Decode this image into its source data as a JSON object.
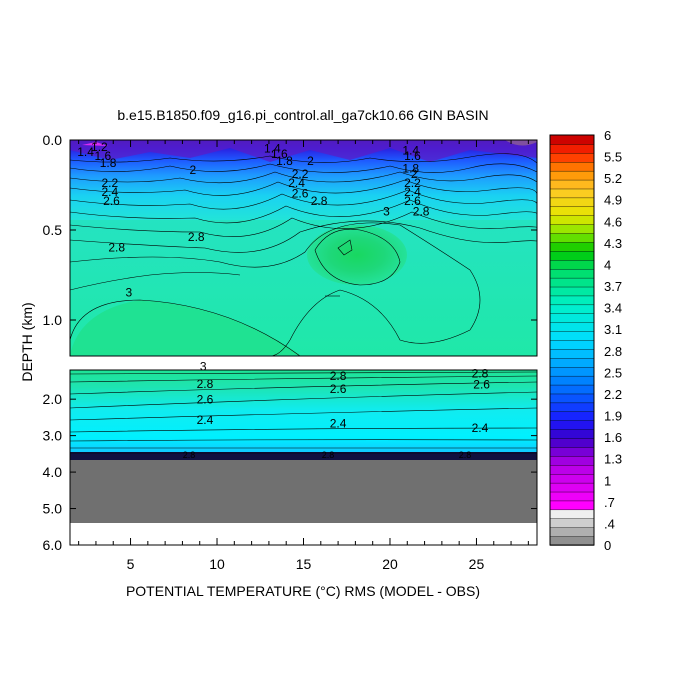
{
  "chart_data": {
    "type": "heatmap",
    "title": "b.e15.B1850.f09_g16.pi_control.all_ga7ck10.66 GIN BASIN",
    "xlabel": "POTENTIAL TEMPERATURE (°C) RMS (MODEL - OBS)",
    "ylabel": "DEPTH (km)",
    "x_range": [
      1.5,
      28.5
    ],
    "x_ticks": [
      "5",
      "10",
      "15",
      "20",
      "25"
    ],
    "upper_panel": {
      "y_range": [
        0.0,
        1.2
      ],
      "y_ticks": [
        "0.0",
        "0.5",
        "1.0"
      ]
    },
    "lower_panel": {
      "y_range": [
        1.2,
        6.0
      ],
      "y_ticks": [
        "2.0",
        "3.0",
        "4.0",
        "5.0",
        "6.0"
      ],
      "bottom_depth_km": 3.6,
      "grey_region_depth_km": [
        3.6,
        5.35
      ]
    },
    "colorbar": {
      "range": [
        0,
        6
      ],
      "levels": [
        0,
        0.1,
        0.2,
        0.3,
        0.4,
        0.5,
        0.6,
        0.7,
        0.8,
        0.9,
        1.0,
        1.1,
        1.2,
        1.3,
        1.4,
        1.5,
        1.6,
        1.7,
        1.8,
        1.9,
        2.0,
        2.1,
        2.2,
        2.3,
        2.4,
        2.5,
        2.6,
        2.7,
        2.8,
        2.9,
        3.0,
        3.1,
        3.2,
        3.3,
        3.4,
        3.5,
        3.6,
        3.7,
        3.8,
        3.9,
        4.0,
        4.3,
        4.6,
        4.9,
        5.2,
        5.5,
        6.0
      ],
      "labels": [
        "6",
        "5.5",
        "5.2",
        "4.9",
        "4.6",
        "4.3",
        "4",
        "3.7",
        "3.4",
        "3.1",
        "2.8",
        "2.5",
        "2.2",
        "1.9",
        "1.6",
        "1.3",
        "1",
        ".7",
        ".4",
        "0"
      ]
    },
    "contour_labels_upper": [
      {
        "text": "1.2",
        "x": 3.2,
        "y": 0.06
      },
      {
        "text": "1.4",
        "x": 2.4,
        "y": 0.09
      },
      {
        "text": "1.6",
        "x": 3.4,
        "y": 0.11
      },
      {
        "text": "1.8",
        "x": 3.7,
        "y": 0.15
      },
      {
        "text": "2",
        "x": 8.6,
        "y": 0.19
      },
      {
        "text": "2.2",
        "x": 3.8,
        "y": 0.26
      },
      {
        "text": "2.4",
        "x": 3.8,
        "y": 0.31
      },
      {
        "text": "2.6",
        "x": 3.9,
        "y": 0.36
      },
      {
        "text": "1.4",
        "x": 13.2,
        "y": 0.07
      },
      {
        "text": "1.6",
        "x": 13.6,
        "y": 0.1
      },
      {
        "text": "1.8",
        "x": 13.9,
        "y": 0.14
      },
      {
        "text": "2",
        "x": 15.4,
        "y": 0.14
      },
      {
        "text": "2.2",
        "x": 14.8,
        "y": 0.21
      },
      {
        "text": "2.4",
        "x": 14.6,
        "y": 0.26
      },
      {
        "text": "2.6",
        "x": 14.8,
        "y": 0.32
      },
      {
        "text": "2.8",
        "x": 15.9,
        "y": 0.36
      },
      {
        "text": "3",
        "x": 19.8,
        "y": 0.42
      },
      {
        "text": "2.8",
        "x": 21.8,
        "y": 0.42
      },
      {
        "text": "1.4",
        "x": 21.2,
        "y": 0.08
      },
      {
        "text": "1.6",
        "x": 21.3,
        "y": 0.11
      },
      {
        "text": "1.8",
        "x": 21.2,
        "y": 0.18
      },
      {
        "text": "2",
        "x": 21.4,
        "y": 0.21
      },
      {
        "text": "2.2",
        "x": 21.3,
        "y": 0.26
      },
      {
        "text": "2.4",
        "x": 21.3,
        "y": 0.31
      },
      {
        "text": "2.6",
        "x": 21.3,
        "y": 0.36
      },
      {
        "text": "2.8",
        "x": 8.8,
        "y": 0.56
      },
      {
        "text": "2.8",
        "x": 4.2,
        "y": 0.62
      },
      {
        "text": "3",
        "x": 4.9,
        "y": 0.87
      }
    ],
    "contour_labels_lower": [
      {
        "text": "3",
        "x": 9.2,
        "y": 1.22
      },
      {
        "text": "2.8",
        "x": 17.0,
        "y": 1.48
      },
      {
        "text": "2.8",
        "x": 25.2,
        "y": 1.4
      },
      {
        "text": "2.8",
        "x": 9.3,
        "y": 1.7
      },
      {
        "text": "2.6",
        "x": 17.0,
        "y": 1.83
      },
      {
        "text": "2.6",
        "x": 25.3,
        "y": 1.71
      },
      {
        "text": "2.6",
        "x": 9.3,
        "y": 2.12
      },
      {
        "text": "2.4",
        "x": 9.3,
        "y": 2.68
      },
      {
        "text": "2.4",
        "x": 17.0,
        "y": 2.78
      },
      {
        "text": "2.4",
        "x": 25.2,
        "y": 2.9
      }
    ]
  }
}
